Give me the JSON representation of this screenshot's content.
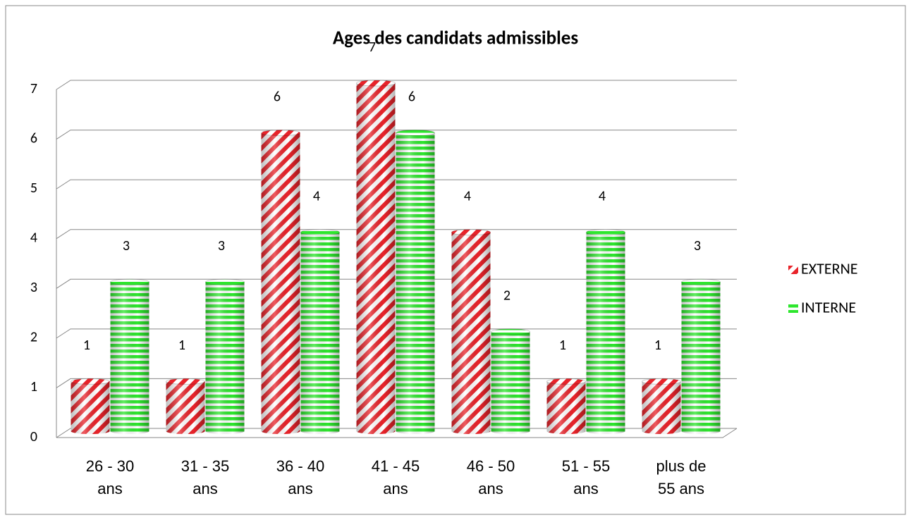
{
  "chart_data": {
    "type": "bar",
    "title": "Ages des candidats  admissibles",
    "categories": [
      "26 - 30 ans",
      "31 - 35 ans",
      "36 - 40 ans",
      "41 - 45 ans",
      "46 - 50 ans",
      "51 - 55 ans",
      "plus de 55 ans"
    ],
    "series": [
      {
        "name": "EXTERNE",
        "color": "#e8232a",
        "values": [
          1,
          1,
          6,
          7,
          4,
          1,
          1
        ]
      },
      {
        "name": "INTERNE",
        "color": "#2ee62e",
        "values": [
          3,
          3,
          4,
          6,
          2,
          4,
          3
        ]
      }
    ],
    "ylim": [
      0,
      7
    ],
    "yticks": [
      0,
      1,
      2,
      3,
      4,
      5,
      6,
      7
    ],
    "grid": true,
    "legend": "right"
  }
}
